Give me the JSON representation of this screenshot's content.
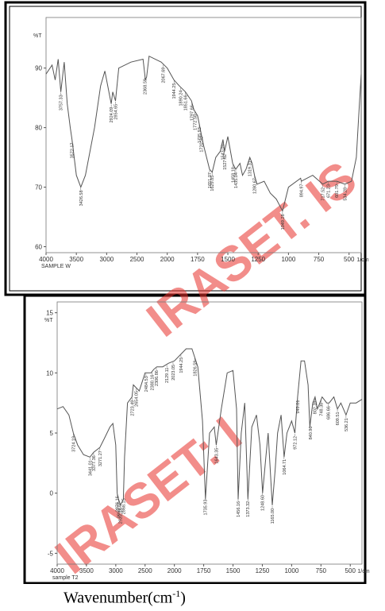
{
  "chart_data": [
    {
      "type": "line",
      "sample_label": "SAMPLE W",
      "y_label": "%T",
      "x_unit": "1/cm",
      "color": "#555555",
      "xlim": [
        4000,
        400
      ],
      "xticks": [
        4000,
        3500,
        3000,
        2500,
        2000,
        1750,
        1500,
        1250,
        1000,
        750,
        500
      ],
      "ylim": [
        59,
        98.5
      ],
      "yticks": [
        60,
        70,
        80,
        90
      ],
      "x": [
        4000,
        3900,
        3850,
        3800,
        3757,
        3700,
        3650,
        3600,
        3572,
        3500,
        3426,
        3350,
        3200,
        3100,
        3030,
        2924,
        2900,
        2854,
        2800,
        2600,
        2400,
        2360,
        2340,
        2300,
        2100,
        2000,
        1944,
        1900,
        1850,
        1800,
        1780,
        1750,
        1735,
        1720,
        1700,
        1651,
        1629,
        1600,
        1563,
        1540,
        1527,
        1500,
        1460,
        1435,
        1400,
        1379,
        1350,
        1319,
        1300,
        1280,
        1260,
        1200,
        1150,
        1100,
        1049,
        1000,
        900,
        894,
        800,
        717,
        671,
        601,
        534,
        480,
        440,
        420,
        400
      ],
      "values": [
        89,
        90.5,
        88,
        91.5,
        86,
        91,
        84,
        80,
        78,
        72,
        70,
        72,
        80,
        87,
        89.5,
        84,
        86,
        84.5,
        90,
        91,
        91.5,
        88,
        88.5,
        92,
        91,
        90,
        88,
        87,
        86,
        84.5,
        83,
        82,
        80.5,
        79,
        77,
        73,
        72.5,
        75,
        76,
        78,
        76,
        78.5,
        74,
        73,
        74,
        72,
        73,
        75,
        74,
        72,
        70.5,
        71,
        69,
        68,
        66,
        70,
        71.5,
        71,
        72,
        70.5,
        71,
        71,
        70.5,
        71,
        75,
        82,
        89
      ],
      "annotations": [
        "3757.33",
        "3572.17",
        "3426.58",
        "2924.09",
        "2854.65",
        "2368.59",
        "2067.69",
        "1944.25",
        "1890.24",
        "1851.66",
        "1797.66",
        "1772.58",
        "1735.93",
        "1720.50",
        "1651.07",
        "1629.85",
        "1543.05",
        "1527.62",
        "1458.18",
        "1435.04",
        "1319.31",
        "1280.67",
        "1049.28",
        "894.97",
        "717.52",
        "671.23",
        "601.79",
        "534.28"
      ]
    },
    {
      "type": "line",
      "sample_label": "sample T2",
      "y_label": "%T",
      "x_unit": "1/cm",
      "color": "#555555",
      "xlim": [
        4000,
        400
      ],
      "xticks": [
        4000,
        3500,
        3000,
        2500,
        2000,
        1750,
        1500,
        1250,
        1000,
        750,
        500
      ],
      "ylim": [
        -5.9,
        15.9
      ],
      "yticks": [
        15,
        10,
        5,
        0,
        -5
      ],
      "x": [
        4000,
        3900,
        3800,
        3724,
        3650,
        3550,
        3441,
        3377,
        3271,
        3200,
        3100,
        3050,
        3000,
        2976,
        2953,
        2920,
        2870,
        2850,
        2800,
        2723,
        2700,
        2600,
        2500,
        2400,
        2350,
        2300,
        2200,
        2100,
        2000,
        1950,
        1900,
        1850,
        1800,
        1760,
        1735,
        1700,
        1660,
        1643,
        1600,
        1550,
        1500,
        1470,
        1456,
        1430,
        1400,
        1373,
        1340,
        1300,
        1270,
        1248,
        1220,
        1200,
        1165,
        1140,
        1120,
        1090,
        1064,
        1040,
        1000,
        972,
        949,
        920,
        890,
        860,
        845,
        820,
        800,
        780,
        740,
        700,
        680,
        640,
        609,
        580,
        536,
        500,
        450,
        400
      ],
      "values": [
        7,
        7.2,
        6.5,
        5,
        4,
        3.2,
        3,
        3.4,
        3.8,
        4.5,
        5.5,
        5.8,
        4,
        0,
        -0.5,
        -1,
        -0.5,
        3,
        7.5,
        8,
        9,
        8.5,
        10,
        10,
        10.3,
        10.5,
        10.5,
        10.8,
        11,
        11.5,
        12,
        12,
        10.5,
        6,
        -0.5,
        5,
        5.5,
        4,
        7,
        10,
        10.2,
        7,
        -0.5,
        5,
        7.5,
        -0.5,
        5.5,
        6.5,
        4,
        0,
        3,
        5,
        -1,
        2,
        5,
        6.5,
        3,
        5,
        6,
        5,
        8,
        11,
        11,
        9,
        5.5,
        7.5,
        8,
        7,
        8,
        7.5,
        7.5,
        8,
        7,
        7.5,
        6.5,
        7.5,
        7.5,
        7.8
      ],
      "annotations": [
        "3724.19",
        "3441.01",
        "3377.36",
        "3271.27",
        "2976.16",
        "2953.02",
        "2922.16",
        "2868.15",
        "2723.49",
        "2654.05",
        "2484.53",
        "2380.16",
        "2306.86",
        "2129.11",
        "2023.05",
        "1944.25",
        "1826.59",
        "1735.93",
        "1643.35",
        "1456.16",
        "1373.32",
        "1248.60",
        "1165.00",
        "1064.71",
        "972.12",
        "949.01",
        "840.96",
        "802.39",
        "748.38",
        "686.66",
        "609.51",
        "536.21"
      ]
    }
  ],
  "caption": {
    "text": "Wavenumber(cm",
    "sup": "-1",
    "end": ")"
  },
  "watermarks": [
    "IRASET. IS",
    "IRASET: I"
  ]
}
